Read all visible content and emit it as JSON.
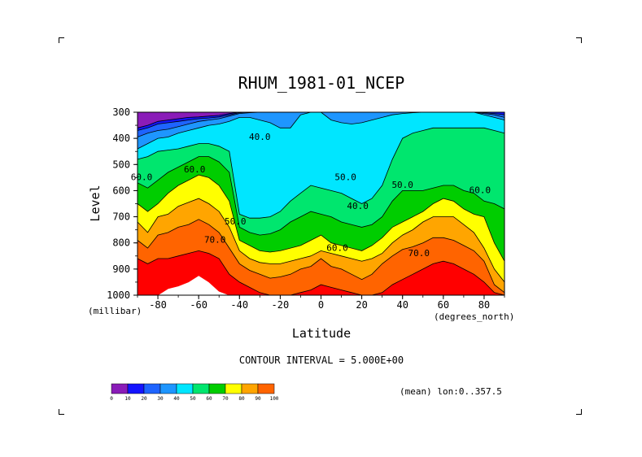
{
  "chart_data": {
    "type": "heatmap",
    "title": "RHUM_1981-01_NCEP",
    "xlabel": "Latitude",
    "ylabel": "Level",
    "x_unit": "(degrees_north)",
    "y_unit": "(millibar)",
    "xlim": [
      -90,
      90
    ],
    "ylim": [
      1000,
      300
    ],
    "x_ticks": [
      "-80",
      "-60",
      "-40",
      "-20",
      "0",
      "20",
      "40",
      "60",
      "80"
    ],
    "y_ticks": [
      "300",
      "400",
      "500",
      "600",
      "700",
      "800",
      "900",
      "1000"
    ],
    "contour_interval_text": "CONTOUR INTERVAL = 5.000E+00",
    "subset_text": "(mean) lon:0..357.5",
    "contour_labels": [
      {
        "text": "40.0",
        "x": -30,
        "y": 405
      },
      {
        "text": "50.0",
        "x": 12,
        "y": 560
      },
      {
        "text": "40.0",
        "x": 18,
        "y": 670
      },
      {
        "text": "50.0",
        "x": 40,
        "y": 590
      },
      {
        "text": "60.0",
        "x": 78,
        "y": 610
      },
      {
        "text": "60.0",
        "x": -62,
        "y": 530
      },
      {
        "text": "50.0",
        "x": -42,
        "y": 730
      },
      {
        "text": "70.0",
        "x": -52,
        "y": 800
      },
      {
        "text": "60.0",
        "x": 8,
        "y": 830
      },
      {
        "text": "70.0",
        "x": 48,
        "y": 850
      },
      {
        "text": "60.0",
        "x": -88,
        "y": 560
      }
    ],
    "columns": [
      {
        "lat": -90,
        "bounds": [
          360,
          370,
          395,
          440,
          480,
          570,
          650,
          720,
          790,
          860,
          1000
        ]
      },
      {
        "lat": -85,
        "bounds": [
          350,
          360,
          380,
          420,
          470,
          590,
          680,
          760,
          820,
          880,
          1000
        ]
      },
      {
        "lat": -80,
        "bounds": [
          335,
          345,
          370,
          400,
          450,
          560,
          650,
          700,
          770,
          860,
          1000
        ]
      },
      {
        "lat": -75,
        "bounds": [
          330,
          340,
          365,
          395,
          445,
          530,
          610,
          690,
          760,
          860,
          975
        ]
      },
      {
        "lat": -70,
        "bounds": [
          325,
          335,
          355,
          380,
          440,
          510,
          580,
          660,
          740,
          850,
          965
        ]
      },
      {
        "lat": -65,
        "bounds": [
          320,
          330,
          345,
          370,
          430,
          490,
          560,
          645,
          730,
          840,
          950
        ]
      },
      {
        "lat": -60,
        "bounds": [
          318,
          325,
          335,
          360,
          420,
          470,
          540,
          630,
          710,
          830,
          925
        ]
      },
      {
        "lat": -55,
        "bounds": [
          315,
          322,
          330,
          350,
          420,
          470,
          550,
          650,
          730,
          840,
          950
        ]
      },
      {
        "lat": -50,
        "bounds": [
          312,
          318,
          325,
          345,
          430,
          490,
          580,
          680,
          760,
          860,
          985
        ]
      },
      {
        "lat": -45,
        "bounds": [
          305,
          310,
          315,
          335,
          450,
          530,
          640,
          740,
          820,
          920,
          1000
        ]
      },
      {
        "lat": -40,
        "bounds": [
          300,
          302,
          305,
          320,
          690,
          740,
          790,
          830,
          880,
          950,
          1000
        ]
      },
      {
        "lat": -35,
        "bounds": [
          300,
          300,
          302,
          320,
          705,
          760,
          810,
          860,
          905,
          970,
          1000
        ]
      },
      {
        "lat": -30,
        "bounds": [
          300,
          300,
          300,
          330,
          705,
          770,
          830,
          875,
          920,
          990,
          1000
        ]
      },
      {
        "lat": -25,
        "bounds": [
          300,
          300,
          300,
          340,
          700,
          765,
          835,
          880,
          935,
          1000,
          1000
        ]
      },
      {
        "lat": -20,
        "bounds": [
          300,
          300,
          300,
          360,
          680,
          750,
          830,
          880,
          930,
          1000,
          1000
        ]
      },
      {
        "lat": -15,
        "bounds": [
          300,
          300,
          300,
          360,
          640,
          720,
          820,
          870,
          920,
          1000,
          1000
        ]
      },
      {
        "lat": -10,
        "bounds": [
          300,
          300,
          300,
          310,
          610,
          700,
          810,
          860,
          900,
          990,
          1000
        ]
      },
      {
        "lat": -5,
        "bounds": [
          300,
          300,
          300,
          300,
          580,
          680,
          790,
          850,
          890,
          980,
          1000
        ]
      },
      {
        "lat": 0,
        "bounds": [
          300,
          300,
          300,
          300,
          590,
          690,
          770,
          830,
          860,
          960,
          1000
        ]
      },
      {
        "lat": 5,
        "bounds": [
          300,
          300,
          300,
          330,
          600,
          700,
          800,
          840,
          890,
          970,
          1000
        ]
      },
      {
        "lat": 10,
        "bounds": [
          300,
          300,
          300,
          340,
          610,
          720,
          810,
          850,
          900,
          980,
          1000
        ]
      },
      {
        "lat": 15,
        "bounds": [
          300,
          300,
          300,
          345,
          630,
          730,
          820,
          860,
          920,
          990,
          1000
        ]
      },
      {
        "lat": 20,
        "bounds": [
          300,
          300,
          300,
          340,
          650,
          740,
          830,
          870,
          940,
          1000,
          1000
        ]
      },
      {
        "lat": 25,
        "bounds": [
          300,
          300,
          300,
          330,
          630,
          730,
          810,
          860,
          920,
          1000,
          1000
        ]
      },
      {
        "lat": 30,
        "bounds": [
          300,
          300,
          300,
          320,
          580,
          700,
          780,
          840,
          880,
          990,
          1000
        ]
      },
      {
        "lat": 35,
        "bounds": [
          300,
          300,
          300,
          310,
          480,
          640,
          740,
          800,
          850,
          960,
          1000
        ]
      },
      {
        "lat": 40,
        "bounds": [
          300,
          300,
          300,
          305,
          400,
          600,
          720,
          770,
          825,
          940,
          1000
        ]
      },
      {
        "lat": 45,
        "bounds": [
          300,
          300,
          300,
          302,
          380,
          600,
          700,
          750,
          815,
          920,
          1000
        ]
      },
      {
        "lat": 50,
        "bounds": [
          300,
          300,
          300,
          300,
          370,
          600,
          680,
          720,
          800,
          900,
          1000
        ]
      },
      {
        "lat": 55,
        "bounds": [
          300,
          300,
          300,
          300,
          360,
          590,
          650,
          700,
          780,
          880,
          1000
        ]
      },
      {
        "lat": 60,
        "bounds": [
          300,
          300,
          300,
          300,
          360,
          580,
          630,
          700,
          780,
          870,
          1000
        ]
      },
      {
        "lat": 65,
        "bounds": [
          300,
          300,
          300,
          300,
          360,
          580,
          640,
          700,
          790,
          880,
          1000
        ]
      },
      {
        "lat": 70,
        "bounds": [
          300,
          300,
          300,
          300,
          360,
          600,
          670,
          730,
          810,
          900,
          1000
        ]
      },
      {
        "lat": 75,
        "bounds": [
          300,
          300,
          300,
          300,
          360,
          610,
          690,
          760,
          830,
          920,
          1000
        ]
      },
      {
        "lat": 80,
        "bounds": [
          300,
          302,
          305,
          310,
          360,
          640,
          700,
          820,
          870,
          950,
          1000
        ]
      },
      {
        "lat": 85,
        "bounds": [
          300,
          305,
          310,
          320,
          370,
          650,
          800,
          900,
          960,
          990,
          1000
        ]
      },
      {
        "lat": 90,
        "bounds": [
          300,
          310,
          320,
          330,
          380,
          670,
          870,
          950,
          990,
          1000,
          1000
        ]
      }
    ],
    "colorbar": {
      "labels": [
        "0",
        "10",
        "20",
        "30",
        "40",
        "50",
        "60",
        "70",
        "80",
        "90",
        "100"
      ],
      "colors": [
        "#8a1cb8",
        "#1414ff",
        "#1e64ff",
        "#1e96ff",
        "#00e6ff",
        "#00e66e",
        "#00cd00",
        "#ffff00",
        "#ffa500",
        "#ff6400",
        "#ff0000"
      ]
    }
  }
}
